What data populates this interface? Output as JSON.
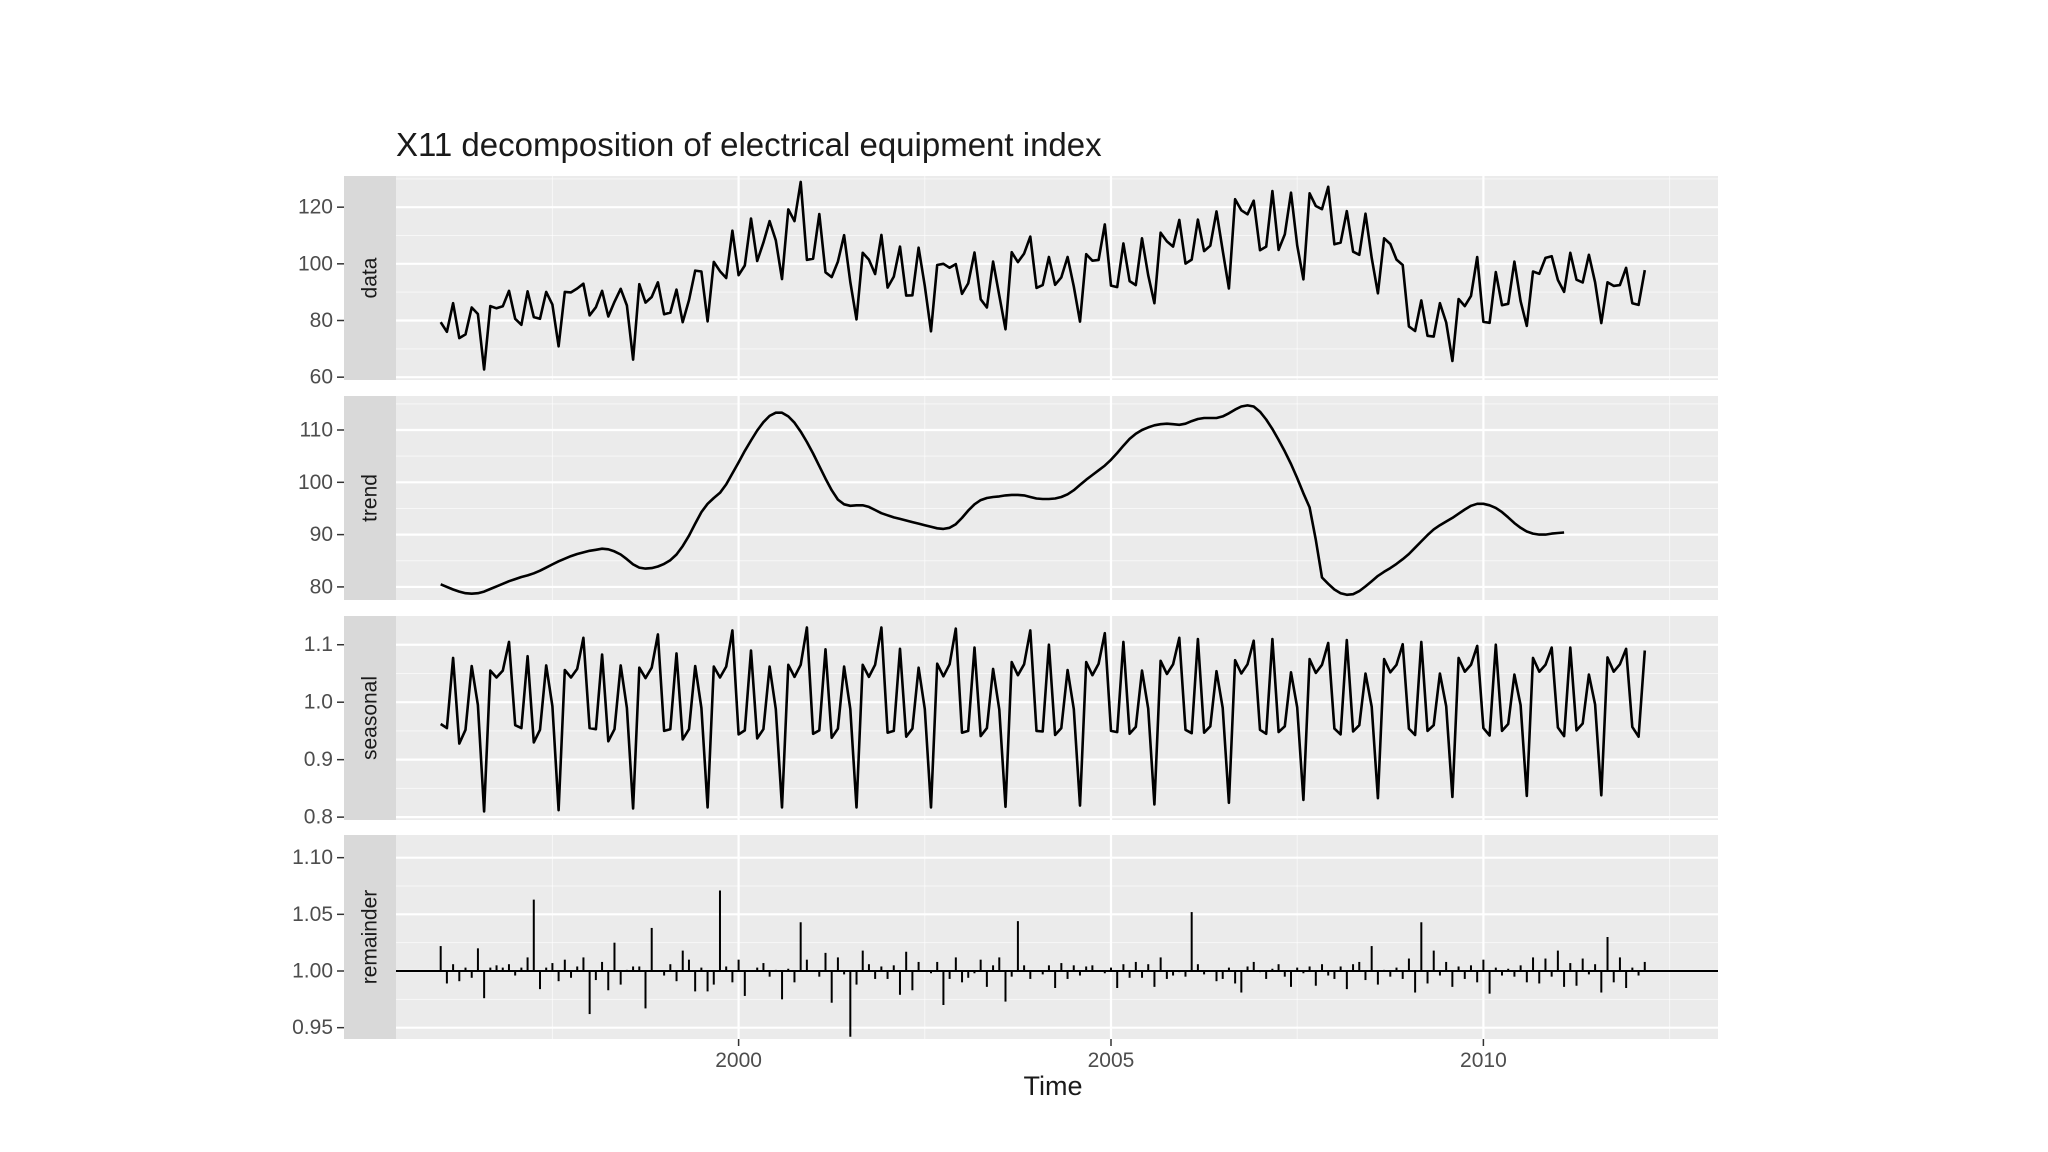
{
  "chart_data": {
    "type": "line",
    "title": "X11 decomposition of electrical equipment index",
    "xlabel": "Time",
    "ylabel": "",
    "xlim": [
      1995.4,
      2013.15
    ],
    "x_ticks": [
      2000,
      2005,
      2010
    ],
    "x_tick_labels": [
      "2000",
      "2005",
      "2010"
    ],
    "grid": true,
    "legend": "none",
    "line_color": "#000000",
    "panel_color": "#ebebeb",
    "strip_color": "#d9d9d9",
    "grid_color": "#ffffff",
    "time_start": 1996.0,
    "time_step": 0.0833333,
    "panels": [
      {
        "name": "data",
        "style": "line",
        "ylim": [
          59,
          131
        ],
        "y_ticks": [
          60,
          80,
          100,
          120
        ],
        "y_tick_labels": [
          "60",
          "80",
          "100",
          "120"
        ],
        "values": [
          79.4,
          76.0,
          86.1,
          73.8,
          75.1,
          84.6,
          82.3,
          62.7,
          85.1,
          84.3,
          85.0,
          90.5,
          80.6,
          78.5,
          90.3,
          81.2,
          80.6,
          90.1,
          85.6,
          70.9,
          90.1,
          89.9,
          91.3,
          93.0,
          81.8,
          84.7,
          90.5,
          81.4,
          86.6,
          91.2,
          85.3,
          66.2,
          92.8,
          86.3,
          88.3,
          93.5,
          82.2,
          82.8,
          90.9,
          79.4,
          87.2,
          97.6,
          97.3,
          79.7,
          100.7,
          97.4,
          95.0,
          111.7,
          96.0,
          99.4,
          116.0,
          101.0,
          107.5,
          115.1,
          108.3,
          94.6,
          119.2,
          115.1,
          128.9,
          101.4,
          101.8,
          117.6,
          97.0,
          95.3,
          100.8,
          110.1,
          93.6,
          80.4,
          103.9,
          101.5,
          96.4,
          110.2,
          91.6,
          95.5,
          106.1,
          88.8,
          88.9,
          105.7,
          92.2,
          76.2,
          99.6,
          100.0,
          98.6,
          99.9,
          89.4,
          93.1,
          104.0,
          87.5,
          84.6,
          100.8,
          88.8,
          76.9,
          104.1,
          100.6,
          103.6,
          109.6,
          91.5,
          92.5,
          102.4,
          92.6,
          95.2,
          102.4,
          92.0,
          79.6,
          103.4,
          101.1,
          101.4,
          113.9,
          92.3,
          91.8,
          107.2,
          93.9,
          92.5,
          109.0,
          96.0,
          86.1,
          111.0,
          107.9,
          106.1,
          115.5,
          100.1,
          101.5,
          115.6,
          104.5,
          106.4,
          118.5,
          104.7,
          91.3,
          122.8,
          118.9,
          117.5,
          122.3,
          104.8,
          106.1,
          125.7,
          104.9,
          110.4,
          125.1,
          106.5,
          94.5,
          124.9,
          120.4,
          119.3,
          127.2,
          106.9,
          107.5,
          118.6,
          104.3,
          103.2,
          117.7,
          102.1,
          89.6,
          109.0,
          107.0,
          101.5,
          99.6,
          77.9,
          76.3,
          87.1,
          74.6,
          74.3,
          86.1,
          79.3,
          65.7,
          87.6,
          85.1,
          88.7,
          102.4,
          79.5,
          79.2,
          97.1,
          85.4,
          85.9,
          100.8,
          86.8,
          78.1,
          97.3,
          96.5,
          102.1,
          102.7,
          94.3,
          90.1,
          103.9,
          94.4,
          93.4,
          103.2,
          93.5,
          79.1,
          93.5,
          92.2,
          92.5,
          98.6,
          86.1,
          85.5,
          97.8
        ]
      },
      {
        "name": "trend",
        "style": "line",
        "ylim": [
          77.5,
          116.5
        ],
        "y_ticks": [
          80,
          90,
          100,
          110
        ],
        "y_tick_labels": [
          "80",
          "90",
          "100",
          "110"
        ],
        "values": [
          80.5,
          80.0,
          79.5,
          79.1,
          78.8,
          78.7,
          78.8,
          79.1,
          79.6,
          80.1,
          80.6,
          81.1,
          81.5,
          81.9,
          82.2,
          82.6,
          83.1,
          83.7,
          84.3,
          84.9,
          85.4,
          85.9,
          86.3,
          86.6,
          86.9,
          87.1,
          87.3,
          87.2,
          86.8,
          86.2,
          85.3,
          84.3,
          83.7,
          83.5,
          83.6,
          83.9,
          84.4,
          85.1,
          86.2,
          87.8,
          89.8,
          92.1,
          94.3,
          95.9,
          97.0,
          98.0,
          99.6,
          101.7,
          103.8,
          106.0,
          108.0,
          109.9,
          111.5,
          112.7,
          113.3,
          113.3,
          112.6,
          111.4,
          109.7,
          107.7,
          105.5,
          103.1,
          100.7,
          98.5,
          96.7,
          95.8,
          95.5,
          95.6,
          95.6,
          95.3,
          94.7,
          94.1,
          93.7,
          93.3,
          93.0,
          92.7,
          92.4,
          92.1,
          91.8,
          91.5,
          91.2,
          91.1,
          91.3,
          92.0,
          93.2,
          94.6,
          95.8,
          96.6,
          97.0,
          97.2,
          97.3,
          97.5,
          97.6,
          97.6,
          97.5,
          97.2,
          96.9,
          96.8,
          96.8,
          96.9,
          97.2,
          97.7,
          98.5,
          99.5,
          100.5,
          101.4,
          102.3,
          103.2,
          104.3,
          105.6,
          107.0,
          108.3,
          109.3,
          110.0,
          110.5,
          110.9,
          111.1,
          111.2,
          111.1,
          111.0,
          111.2,
          111.7,
          112.1,
          112.3,
          112.3,
          112.3,
          112.6,
          113.2,
          113.9,
          114.5,
          114.7,
          114.5,
          113.5,
          112.0,
          110.2,
          108.1,
          105.9,
          103.5,
          100.8,
          97.9,
          95.2,
          89.0,
          81.8,
          80.6,
          79.5,
          78.8,
          78.5,
          78.6,
          79.2,
          80.1,
          81.1,
          82.1,
          82.9,
          83.6,
          84.4,
          85.3,
          86.3,
          87.5,
          88.7,
          89.9,
          91.0,
          91.8,
          92.5,
          93.2,
          94.0,
          94.8,
          95.5,
          95.9,
          95.9,
          95.6,
          95.1,
          94.3,
          93.3,
          92.2,
          91.3,
          90.6,
          90.2,
          90.0,
          90.0,
          90.2,
          90.3,
          90.4
        ]
      },
      {
        "name": "seasonal",
        "style": "line",
        "ylim": [
          0.795,
          1.15
        ],
        "y_ticks": [
          0.8,
          0.9,
          1.0,
          1.1
        ],
        "y_tick_labels": [
          "0.8",
          "0.9",
          "1.0",
          "1.1"
        ],
        "values": [
          0.962,
          0.955,
          1.077,
          0.928,
          0.952,
          1.063,
          0.995,
          0.81,
          1.055,
          1.043,
          1.055,
          1.105,
          0.96,
          0.955,
          1.08,
          0.93,
          0.952,
          1.064,
          0.993,
          0.812,
          1.056,
          1.043,
          1.058,
          1.112,
          0.955,
          0.953,
          1.083,
          0.932,
          0.953,
          1.064,
          0.99,
          0.815,
          1.06,
          1.042,
          1.06,
          1.118,
          0.95,
          0.953,
          1.085,
          0.935,
          0.953,
          1.063,
          0.99,
          0.817,
          1.062,
          1.043,
          1.062,
          1.125,
          0.944,
          0.951,
          1.09,
          0.937,
          0.953,
          1.062,
          0.988,
          0.817,
          1.065,
          1.044,
          1.065,
          1.13,
          0.945,
          0.951,
          1.092,
          0.938,
          0.954,
          1.062,
          0.988,
          0.817,
          1.065,
          1.044,
          1.065,
          1.13,
          0.947,
          0.95,
          1.093,
          0.94,
          0.954,
          1.06,
          0.988,
          0.817,
          1.067,
          1.045,
          1.066,
          1.128,
          0.947,
          0.95,
          1.095,
          0.941,
          0.955,
          1.058,
          0.987,
          0.818,
          1.07,
          1.047,
          1.066,
          1.125,
          0.95,
          0.949,
          1.1,
          0.943,
          0.955,
          1.056,
          0.988,
          0.82,
          1.07,
          1.047,
          1.067,
          1.12,
          0.95,
          0.948,
          1.105,
          0.945,
          0.957,
          1.055,
          0.989,
          0.822,
          1.072,
          1.049,
          1.066,
          1.112,
          0.952,
          0.946,
          1.11,
          0.947,
          0.958,
          1.054,
          0.99,
          0.825,
          1.073,
          1.05,
          1.066,
          1.107,
          0.952,
          0.945,
          1.11,
          0.948,
          0.958,
          1.052,
          0.991,
          0.83,
          1.075,
          1.051,
          1.065,
          1.103,
          0.954,
          0.944,
          1.108,
          0.949,
          0.96,
          1.05,
          0.992,
          0.833,
          1.075,
          1.052,
          1.065,
          1.101,
          0.954,
          0.943,
          1.105,
          0.95,
          0.96,
          1.05,
          0.993,
          0.835,
          1.077,
          1.053,
          1.065,
          1.098,
          0.955,
          0.942,
          1.1,
          0.95,
          0.962,
          1.048,
          0.995,
          0.837,
          1.077,
          1.053,
          1.065,
          1.095,
          0.956,
          0.941,
          1.095,
          0.951,
          0.963,
          1.048,
          0.996,
          0.838,
          1.078,
          1.053,
          1.066,
          1.093,
          0.957,
          0.94,
          1.09
        ]
      },
      {
        "name": "remainder",
        "style": "spike",
        "baseline": 1.0,
        "ylim": [
          0.94,
          1.12
        ],
        "y_ticks": [
          0.95,
          1.0,
          1.05,
          1.1
        ],
        "y_tick_labels": [
          "0.95",
          "1.00",
          "1.05",
          "1.10"
        ],
        "values": [
          1.022,
          0.989,
          1.006,
          0.991,
          1.003,
          0.994,
          1.02,
          0.976,
          1.003,
          1.005,
          1.003,
          1.006,
          0.996,
          1.003,
          1.012,
          1.063,
          0.984,
          1.003,
          1.007,
          0.991,
          1.01,
          0.994,
          1.004,
          1.012,
          0.962,
          0.992,
          1.008,
          0.983,
          1.025,
          0.988,
          1.001,
          1.004,
          1.004,
          0.967,
          1.038,
          1.0,
          0.996,
          1.006,
          0.991,
          1.018,
          1.01,
          0.982,
          1.003,
          0.982,
          0.988,
          1.071,
          1.004,
          0.99,
          1.01,
          0.978,
          1.0,
          1.003,
          1.007,
          0.995,
          1.001,
          0.975,
          1.002,
          0.99,
          1.043,
          1.01,
          1.0,
          0.995,
          1.016,
          0.972,
          1.012,
          0.997,
          0.942,
          0.988,
          1.018,
          1.006,
          0.993,
          1.004,
          0.993,
          1.005,
          0.979,
          1.017,
          0.983,
          1.008,
          1.0,
          0.998,
          1.008,
          0.97,
          0.993,
          1.012,
          0.99,
          0.994,
          0.998,
          1.01,
          0.986,
          1.005,
          1.012,
          0.973,
          0.995,
          1.044,
          1.005,
          0.993,
          1.0,
          0.997,
          1.005,
          0.985,
          1.007,
          0.993,
          1.005,
          0.996,
          1.004,
          1.005,
          1.0,
          0.998,
          1.003,
          0.985,
          1.006,
          0.994,
          1.008,
          0.994,
          1.006,
          0.986,
          1.012,
          0.993,
          0.996,
          0.999,
          0.995,
          1.052,
          1.006,
          0.997,
          1.0,
          0.991,
          0.993,
          1.003,
          0.989,
          0.981,
          1.004,
          1.008,
          0.999,
          0.993,
          1.002,
          1.006,
          0.995,
          0.986,
          1.003,
          0.998,
          1.004,
          0.987,
          1.006,
          0.996,
          0.993,
          1.004,
          0.984,
          1.006,
          1.008,
          0.992,
          1.022,
          0.988,
          1.001,
          0.995,
          1.003,
          0.993,
          1.011,
          0.981,
          1.043,
          0.989,
          1.018,
          0.996,
          1.008,
          0.986,
          1.004,
          0.993,
          1.005,
          0.99,
          1.01,
          0.98,
          1.003,
          0.996,
          1.002,
          0.995,
          1.005,
          0.99,
          1.012,
          0.989,
          1.011,
          0.995,
          1.018,
          0.986,
          1.007,
          0.987,
          1.011,
          0.997,
          1.006,
          0.981,
          1.03,
          0.99,
          1.012,
          0.985,
          1.003,
          0.996,
          1.008
        ]
      }
    ]
  }
}
